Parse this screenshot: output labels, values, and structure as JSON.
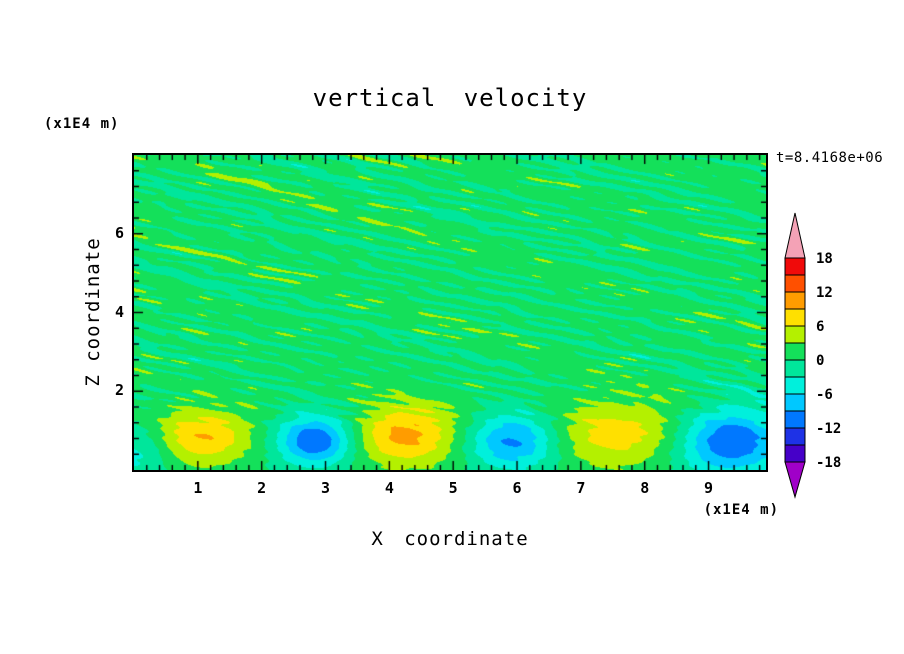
{
  "figure": {
    "title": "vertical velocity",
    "time_label": "t=8.4168e+06",
    "top_left_unit": "(x1E4 m)",
    "bottom_right_unit": "(x1E4 m)"
  },
  "axes": {
    "x_label": "X coordinate",
    "y_label": "Z coordinate",
    "x_ticks": [
      1,
      2,
      3,
      4,
      5,
      6,
      7,
      8,
      9
    ],
    "y_ticks": [
      2,
      4,
      6
    ]
  },
  "colorbar": {
    "tick_values": [
      18,
      12,
      6,
      0,
      -6,
      -12,
      -18
    ],
    "tick_labels": [
      "18",
      "12",
      "6",
      "0",
      "-6",
      "-12",
      "-18"
    ]
  },
  "chart_data": {
    "type": "heatmap",
    "subtype": "filled-contour",
    "title": "vertical velocity",
    "xlabel": "X coordinate",
    "ylabel": "Z coordinate",
    "x_unit": "x1E4 m",
    "y_unit": "x1E4 m",
    "time_annotation": "t=8.4168e+06",
    "xlim": [
      0,
      9.9
    ],
    "ylim": [
      0,
      8
    ],
    "contour_interval": 3,
    "levels": [
      -18,
      -15,
      -12,
      -9,
      -6,
      -3,
      0,
      3,
      6,
      9,
      12,
      15,
      18
    ],
    "palette": [
      "#4600C8",
      "#1E32E6",
      "#0078FF",
      "#00C8FF",
      "#00F0DC",
      "#00E69B",
      "#14E05A",
      "#B4F000",
      "#FFE000",
      "#FF9C00",
      "#FF5000",
      "#F00A0A"
    ],
    "over_color": "#F4A2B6",
    "under_color": "#A000C8",
    "background_bias": 0.6,
    "features": {
      "description": "mostly near-zero green field with fine horizontal mottling aloft; alternating updraft (yellow) and downdraft (blue) cells confined below z=2",
      "noise_amplitude": 2.1,
      "noise_fade_below_z": 1.9,
      "updrafts": [
        {
          "x": 1.05,
          "z": 0.85,
          "amp": 8.5,
          "sx": 0.55,
          "sz": 0.5
        },
        {
          "x": 4.25,
          "z": 0.9,
          "amp": 9.5,
          "sx": 0.6,
          "sz": 0.55
        },
        {
          "x": 7.7,
          "z": 0.95,
          "amp": 8.2,
          "sx": 0.85,
          "sz": 0.6
        }
      ],
      "downdrafts": [
        {
          "x": 2.85,
          "z": 0.75,
          "amp": -13,
          "sx": 0.42,
          "sz": 0.45
        },
        {
          "x": 5.95,
          "z": 0.75,
          "amp": -11,
          "sx": 0.5,
          "sz": 0.5
        },
        {
          "x": 9.3,
          "z": 0.7,
          "amp": -10,
          "sx": 0.55,
          "sz": 0.55
        },
        {
          "x": 9.25,
          "z": 0.9,
          "amp": -3.5,
          "sx": 1.05,
          "sz": 0.75
        },
        {
          "x": 0.08,
          "z": 0.45,
          "amp": -5,
          "sx": 0.38,
          "sz": 0.55
        }
      ]
    }
  }
}
